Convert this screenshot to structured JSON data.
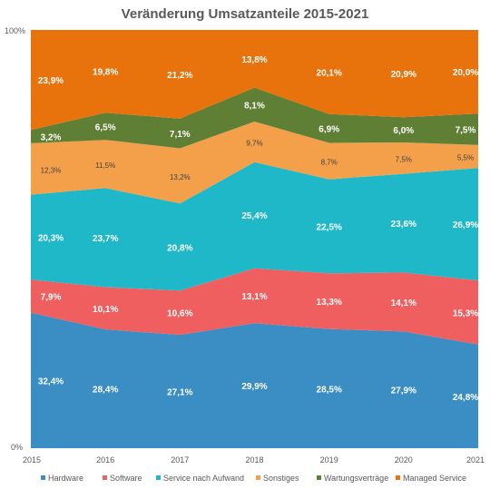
{
  "chart_data": {
    "type": "area",
    "stacked": true,
    "title": "Veränderung Umsatzanteile 2015-2021",
    "x": [
      "2015",
      "2016",
      "2017",
      "2018",
      "2019",
      "2020",
      "2021"
    ],
    "ylim": [
      0,
      100
    ],
    "yticks": [
      "0%",
      "100%"
    ],
    "legend_position": "bottom",
    "series": [
      {
        "name": "Hardware",
        "color": "#3a8ec4",
        "values": [
          32.4,
          28.4,
          27.1,
          29.9,
          28.5,
          27.9,
          24.8
        ],
        "labels": [
          "32,4%",
          "28,4%",
          "27,1%",
          "29,9%",
          "28,5%",
          "27,9%",
          "24,8%"
        ]
      },
      {
        "name": "Software",
        "color": "#ef5f5f",
        "values": [
          7.9,
          10.1,
          10.6,
          13.1,
          13.3,
          14.1,
          15.3
        ],
        "labels": [
          "7,9%",
          "10,1%",
          "10,6%",
          "13,1%",
          "13,3%",
          "14,1%",
          "15,3%"
        ]
      },
      {
        "name": "Service nach Aufwand",
        "color": "#1fb8c9",
        "values": [
          20.3,
          23.7,
          20.8,
          25.4,
          22.5,
          23.6,
          26.9
        ],
        "labels": [
          "20,3%",
          "23,7%",
          "20,8%",
          "25,4%",
          "22,5%",
          "23,6%",
          "26,9%"
        ]
      },
      {
        "name": "Sonstiges",
        "color": "#f4a04b",
        "values": [
          12.3,
          11.5,
          13.2,
          9.7,
          8.7,
          7.5,
          5.5
        ],
        "labels": [
          "12,3%",
          "11,5%",
          "13,2%",
          "9,7%",
          "8,7%",
          "7,5%",
          "5,5%"
        ]
      },
      {
        "name": "Wartungsverträge",
        "color": "#5f7f35",
        "values": [
          3.2,
          6.5,
          7.1,
          8.1,
          6.9,
          6.0,
          7.5
        ],
        "labels": [
          "3,2%",
          "6,5%",
          "7,1%",
          "8,1%",
          "6,9%",
          "6,0%",
          "7,5%"
        ]
      },
      {
        "name": "Managed Service",
        "color": "#e8720c",
        "values": [
          23.9,
          19.8,
          21.2,
          13.8,
          20.1,
          20.9,
          20.0
        ],
        "labels": [
          "23,9%",
          "19,8%",
          "21,2%",
          "13,8%",
          "20,1%",
          "20,9%",
          "20,0%"
        ]
      }
    ]
  }
}
